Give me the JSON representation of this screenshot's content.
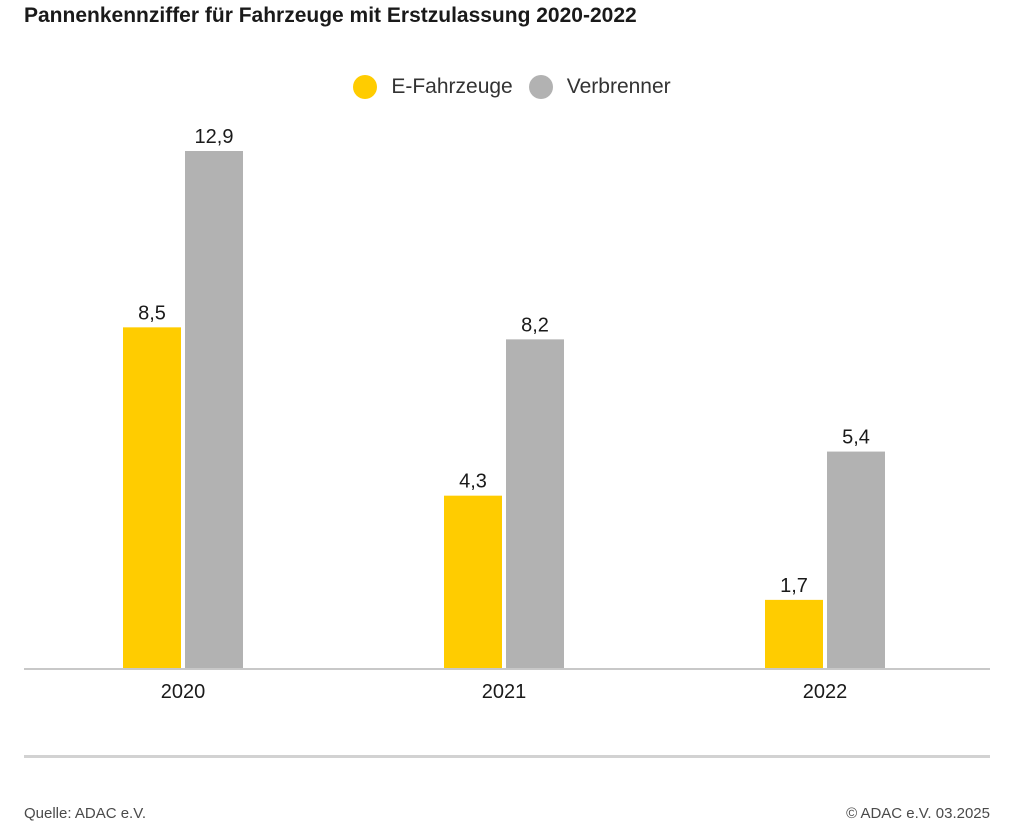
{
  "title": "Pannenkennziffer für Fahrzeuge mit Erstzulassung 2020-2022",
  "chart_data": {
    "type": "bar",
    "title": "Pannenkennziffer für Fahrzeuge mit Erstzulassung 2020-2022",
    "categories": [
      "2020",
      "2021",
      "2022"
    ],
    "series": [
      {
        "name": "E-Fahrzeuge",
        "values": [
          8.5,
          4.3,
          1.7
        ],
        "labels": [
          "8,5",
          "4,3",
          "1,7"
        ],
        "color": "#ffcc00"
      },
      {
        "name": "Verbrenner",
        "values": [
          12.9,
          8.2,
          5.4
        ],
        "labels": [
          "12,9",
          "8,2",
          "5,4"
        ],
        "color": "#b2b2b2"
      }
    ],
    "xlabel": "",
    "ylabel": "",
    "ylim": [
      0,
      12.9
    ],
    "grid": false,
    "legend": "top-center"
  },
  "footer": {
    "source": "Quelle: ADAC e.V.",
    "copyright": "© ADAC e.V. 03.2025"
  },
  "colors": {
    "axis": "#c8c8c8",
    "rule": "#d2d2d2"
  }
}
